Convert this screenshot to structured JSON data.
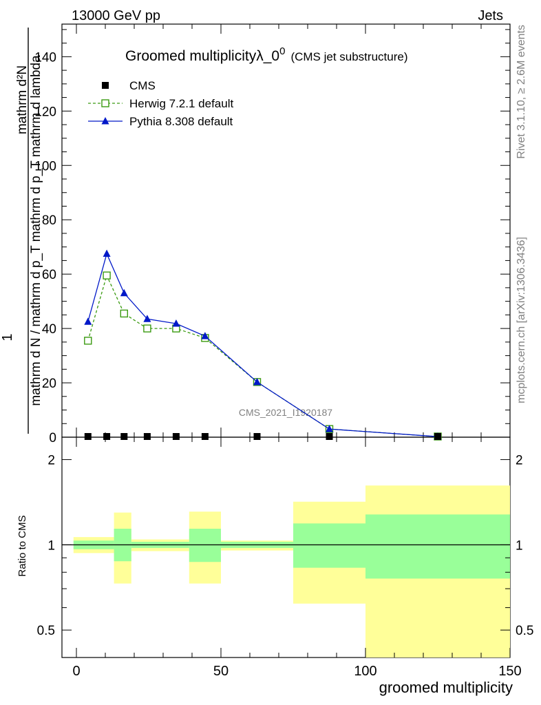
{
  "header": {
    "left": "13000 GeV pp",
    "right": "Jets"
  },
  "side_labels": {
    "rivet": "Rivet 3.1.10, ≥ 2.6M events",
    "mcplots": "mcplots.cern.ch [arXiv:1306.3436]"
  },
  "chart_data": [
    {
      "type": "line",
      "title_main": "Groomed multiplicityλ_0",
      "title_sup": "0",
      "title_sub": "(CMS jet substructure)",
      "ylabel_numerator": "mathrm d²N",
      "ylabel_denominator": "mathrm d N / mathrm d p_T mathrm d p_T mathrm d lambda",
      "ylabel_prefix": "1",
      "watermark": "CMS_2021_I1920187",
      "xlim": [
        -5,
        150
      ],
      "ylim": [
        0,
        152
      ],
      "yticks": [
        0,
        20,
        40,
        60,
        80,
        100,
        120,
        140
      ],
      "legend_position": "top-left",
      "series": [
        {
          "name": "CMS",
          "color": "#000000",
          "marker": "square-filled",
          "x": [
            4,
            10.5,
            16.5,
            24.5,
            34.5,
            44.5,
            62.5,
            87.5,
            125
          ],
          "y": [
            0.15,
            0.15,
            0.15,
            0.15,
            0.15,
            0.15,
            0.15,
            0.1,
            0.05
          ]
        },
        {
          "name": "Herwig 7.2.1 default",
          "color": "#3a9a10",
          "marker": "square-open",
          "line": "dashed",
          "x": [
            4,
            10.5,
            16.5,
            24.5,
            34.5,
            44.5,
            62.5,
            87.5,
            125
          ],
          "y": [
            35.5,
            59.5,
            45.5,
            40.0,
            40.0,
            36.5,
            20.3,
            3.0,
            0.2
          ]
        },
        {
          "name": "Pythia 8.308 default",
          "color": "#0018c8",
          "marker": "triangle-filled",
          "line": "solid",
          "x": [
            4,
            10.5,
            16.5,
            24.5,
            34.5,
            44.5,
            62.5,
            87.5,
            125
          ],
          "y": [
            42.5,
            67.5,
            53.0,
            43.5,
            41.8,
            37.2,
            20.3,
            3.0,
            0.2
          ]
        }
      ]
    },
    {
      "type": "area",
      "ylabel": "Ratio to CMS",
      "xlabel": "groomed multiplicity",
      "xlim": [
        -5,
        150
      ],
      "ylim": [
        0.4,
        2.4
      ],
      "scale": "log",
      "yticks": [
        0.5,
        1,
        2
      ],
      "xticks": [
        0,
        50,
        100,
        150
      ],
      "reference_line": 1,
      "bins": [
        {
          "x0": -1,
          "x1": 13,
          "inner": [
            0.965,
            1.035
          ],
          "outer": [
            0.935,
            1.065
          ]
        },
        {
          "x0": 13,
          "x1": 19,
          "inner": [
            0.875,
            1.14
          ],
          "outer": [
            0.73,
            1.3
          ]
        },
        {
          "x0": 19,
          "x1": 39,
          "inner": [
            0.975,
            1.025
          ],
          "outer": [
            0.95,
            1.045
          ]
        },
        {
          "x0": 39,
          "x1": 50,
          "inner": [
            0.87,
            1.14
          ],
          "outer": [
            0.73,
            1.31
          ]
        },
        {
          "x0": 50,
          "x1": 75,
          "inner": [
            0.975,
            1.025
          ],
          "outer": [
            0.955,
            1.035
          ]
        },
        {
          "x0": 75,
          "x1": 100,
          "inner": [
            0.83,
            1.19
          ],
          "outer": [
            0.62,
            1.42
          ]
        },
        {
          "x0": 100,
          "x1": 150,
          "inner": [
            0.76,
            1.28
          ],
          "outer": [
            0.4,
            1.62
          ]
        }
      ]
    }
  ]
}
